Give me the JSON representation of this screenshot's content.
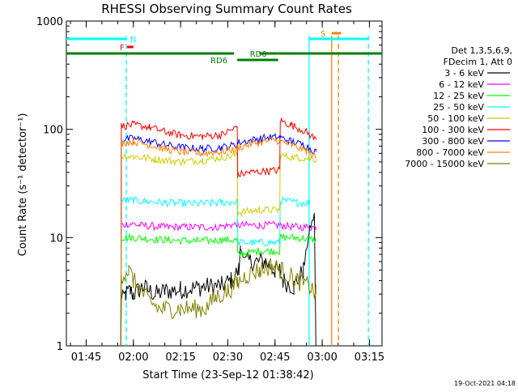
{
  "chart_data": {
    "type": "line",
    "title": "RHESSI Observing Summary Count Rates",
    "xlabel": "Start Time (23-Sep-12 01:38:42)",
    "ylabel": "Count Rate (s⁻¹ detector⁻¹)",
    "y_scale": "log",
    "ylim": [
      1,
      1000
    ],
    "xlim": [
      "01:38:42",
      "03:19:00"
    ],
    "x_ticks": [
      "01:45",
      "02:00",
      "02:15",
      "02:30",
      "02:45",
      "03:00",
      "03:15"
    ],
    "y_ticks": [
      "1",
      "10",
      "100",
      "1000"
    ],
    "timestamp": "19-Oct-2021 04:18",
    "legend": {
      "position": "right",
      "header": [
        "Det 1,3,5,6,9,",
        "FDecim 1, Att 0"
      ]
    },
    "colors": {
      "axes": "#000000",
      "cyan": "#00ffff",
      "green": "#008000",
      "red": "#ff0000",
      "orange": "#ff8000"
    },
    "series": [
      {
        "name": "3 - 6 keV",
        "color": "#000000",
        "points": [
          [
            "01:56:00",
            1
          ],
          [
            "01:56:10",
            2.5
          ],
          [
            "01:57:30",
            3
          ],
          [
            "01:59:00",
            3.2
          ],
          [
            "02:00:00",
            3
          ],
          [
            "02:03:00",
            3.5
          ],
          [
            "02:07:00",
            3
          ],
          [
            "02:10:00",
            3.2
          ],
          [
            "02:15:00",
            3.3
          ],
          [
            "02:22:00",
            3.5
          ],
          [
            "02:28:00",
            3.6
          ],
          [
            "02:31:00",
            4
          ],
          [
            "02:33:30",
            5
          ],
          [
            "02:34:00",
            8
          ],
          [
            "02:36:00",
            6
          ],
          [
            "02:39:00",
            6
          ],
          [
            "02:42:00",
            6
          ],
          [
            "02:45:00",
            5
          ],
          [
            "02:46:30",
            5
          ],
          [
            "02:47:30",
            4
          ],
          [
            "02:51:00",
            3.5
          ],
          [
            "02:54:00",
            5
          ],
          [
            "02:56:00",
            12
          ],
          [
            "02:57:30",
            16
          ],
          [
            "02:58:00",
            1
          ]
        ]
      },
      {
        "name": "6 - 12 keV",
        "color": "#ff00ff",
        "points": [
          [
            "01:56:00",
            1
          ],
          [
            "01:56:10",
            13
          ],
          [
            "01:59:00",
            13.5
          ],
          [
            "02:02:00",
            13
          ],
          [
            "02:10:00",
            12.5
          ],
          [
            "02:18:00",
            12.5
          ],
          [
            "02:26:00",
            12.5
          ],
          [
            "02:31:00",
            13
          ],
          [
            "02:33:00",
            13.3
          ],
          [
            "02:33:10",
            13
          ],
          [
            "02:40:00",
            13
          ],
          [
            "02:46:30",
            13
          ],
          [
            "02:46:40",
            13
          ],
          [
            "02:52:00",
            12.5
          ],
          [
            "02:58:00",
            12.5
          ]
        ]
      },
      {
        "name": "12 - 25 keV",
        "color": "#00ff00",
        "points": [
          [
            "01:56:00",
            1
          ],
          [
            "01:56:10",
            10
          ],
          [
            "02:00:00",
            10
          ],
          [
            "02:10:00",
            9.5
          ],
          [
            "02:20:00",
            9.3
          ],
          [
            "02:28:00",
            9.5
          ],
          [
            "02:33:00",
            9.5
          ],
          [
            "02:33:10",
            7
          ],
          [
            "02:40:00",
            7.5
          ],
          [
            "02:46:30",
            7.5
          ],
          [
            "02:46:40",
            10
          ],
          [
            "02:52:00",
            10
          ],
          [
            "02:58:00",
            9.5
          ]
        ]
      },
      {
        "name": "25 - 50 keV",
        "color": "#00ffff",
        "points": [
          [
            "01:56:00",
            1
          ],
          [
            "01:56:10",
            22
          ],
          [
            "02:00:00",
            22
          ],
          [
            "02:10:00",
            21
          ],
          [
            "02:20:00",
            20.5
          ],
          [
            "02:28:00",
            21
          ],
          [
            "02:33:00",
            21.5
          ],
          [
            "02:33:10",
            9
          ],
          [
            "02:40:00",
            9
          ],
          [
            "02:46:30",
            9
          ],
          [
            "02:46:40",
            22
          ],
          [
            "02:52:00",
            21
          ],
          [
            "02:56:00",
            21
          ]
        ]
      },
      {
        "name": "50 - 100 keV",
        "color": "#cccc00",
        "points": [
          [
            "01:56:00",
            1
          ],
          [
            "01:56:10",
            57
          ],
          [
            "02:00:00",
            56
          ],
          [
            "02:07:00",
            53
          ],
          [
            "02:15:00",
            50
          ],
          [
            "02:22:00",
            52
          ],
          [
            "02:28:00",
            55
          ],
          [
            "02:33:00",
            58
          ],
          [
            "02:33:10",
            17
          ],
          [
            "02:40:00",
            18
          ],
          [
            "02:46:30",
            18
          ],
          [
            "02:46:40",
            57
          ],
          [
            "02:52:00",
            55
          ],
          [
            "02:58:00",
            53
          ]
        ]
      },
      {
        "name": "100 - 300 keV",
        "color": "#ff0000",
        "points": [
          [
            "01:56:00",
            1
          ],
          [
            "01:56:10",
            107
          ],
          [
            "02:00:00",
            110
          ],
          [
            "02:05:00",
            105
          ],
          [
            "02:10:00",
            95
          ],
          [
            "02:15:00",
            88
          ],
          [
            "02:22:00",
            86
          ],
          [
            "02:28:00",
            89
          ],
          [
            "02:33:00",
            105
          ],
          [
            "02:33:10",
            38
          ],
          [
            "02:37:00",
            40
          ],
          [
            "02:42:00",
            41
          ],
          [
            "02:46:30",
            42
          ],
          [
            "02:46:40",
            120
          ],
          [
            "02:50:00",
            110
          ],
          [
            "02:55:00",
            95
          ],
          [
            "02:58:00",
            80
          ]
        ]
      },
      {
        "name": "300 - 800 keV",
        "color": "#0000ff",
        "points": [
          [
            "01:56:00",
            1
          ],
          [
            "01:56:10",
            80
          ],
          [
            "02:00:00",
            82
          ],
          [
            "02:05:00",
            78
          ],
          [
            "02:10:00",
            72
          ],
          [
            "02:15:00",
            68
          ],
          [
            "02:22:00",
            66
          ],
          [
            "02:28:00",
            68
          ],
          [
            "02:33:00",
            72
          ],
          [
            "02:33:10",
            75
          ],
          [
            "02:40:00",
            82
          ],
          [
            "02:45:00",
            85
          ],
          [
            "02:46:30",
            84
          ],
          [
            "02:50:00",
            78
          ],
          [
            "02:55:00",
            70
          ],
          [
            "02:58:00",
            62
          ]
        ]
      },
      {
        "name": "800 - 7000 keV",
        "color": "#ff8000",
        "points": [
          [
            "01:56:00",
            1
          ],
          [
            "01:56:10",
            75
          ],
          [
            "02:00:00",
            77
          ],
          [
            "02:05:00",
            72
          ],
          [
            "02:10:00",
            66
          ],
          [
            "02:15:00",
            62
          ],
          [
            "02:22:00",
            60
          ],
          [
            "02:28:00",
            62
          ],
          [
            "02:33:00",
            66
          ],
          [
            "02:33:10",
            68
          ],
          [
            "02:40:00",
            76
          ],
          [
            "02:45:00",
            79
          ],
          [
            "02:46:30",
            78
          ],
          [
            "02:50:00",
            72
          ],
          [
            "02:55:00",
            63
          ],
          [
            "02:58:00",
            55
          ]
        ]
      },
      {
        "name": "7000 - 15000 keV",
        "color": "#808000",
        "points": [
          [
            "01:56:00",
            1
          ],
          [
            "01:56:10",
            4.5
          ],
          [
            "01:58:30",
            5
          ],
          [
            "02:00:00",
            4
          ],
          [
            "02:04:00",
            2.8
          ],
          [
            "02:08:00",
            2.2
          ],
          [
            "02:15:00",
            2.2
          ],
          [
            "02:23:00",
            2.2
          ],
          [
            "02:26:00",
            2.8
          ],
          [
            "02:30:00",
            3.2
          ],
          [
            "02:33:00",
            3.8
          ],
          [
            "02:36:00",
            4.5
          ],
          [
            "02:40:00",
            5
          ],
          [
            "02:44:00",
            5.5
          ],
          [
            "02:47:00",
            5
          ],
          [
            "02:52:00",
            4
          ],
          [
            "02:56:00",
            3.5
          ],
          [
            "02:58:00",
            3
          ]
        ]
      }
    ],
    "flags": [
      {
        "name": "cyan",
        "color": "#00ffff",
        "segments": [
          [
            "01:38:42",
            "01:57:45"
          ],
          [
            "02:55:50",
            "03:14:40"
          ]
        ],
        "level": "top"
      },
      {
        "name": "N",
        "color": "#00ffff",
        "label": "N",
        "segments": [],
        "level": "top"
      },
      {
        "name": "F",
        "color": "#ff0000",
        "label": "F",
        "segments": [
          [
            "01:58:00",
            "02:00:00"
          ]
        ],
        "level": "flare"
      },
      {
        "name": "S",
        "color": "#ff8000",
        "label": "S",
        "segments": [
          [
            "03:03:00",
            "03:06:00"
          ]
        ],
        "level": "saa"
      },
      {
        "name": "RD0",
        "color": "#008000",
        "label": "RD0",
        "segments": [
          [
            "01:38:42",
            "02:32:00"
          ],
          [
            "02:40:00",
            "02:46:00"
          ],
          [
            "02:46:00",
            "03:19:00"
          ]
        ],
        "level": "rd0"
      },
      {
        "name": "RD6",
        "color": "#008000",
        "label": "RD6",
        "segments": [
          [
            "02:33:00",
            "02:46:00"
          ]
        ],
        "level": "rd6"
      }
    ],
    "vlines": [
      {
        "t": "01:57:45",
        "color": "#00ffff",
        "style": "dashed"
      },
      {
        "t": "02:55:50",
        "color": "#00ffff",
        "style": "solid"
      },
      {
        "t": "03:03:00",
        "color": "#ff8000",
        "style": "solid"
      },
      {
        "t": "03:05:10",
        "color": "#ff8000",
        "style": "dashed"
      },
      {
        "t": "03:14:40",
        "color": "#00ffff",
        "style": "dashed"
      }
    ]
  }
}
